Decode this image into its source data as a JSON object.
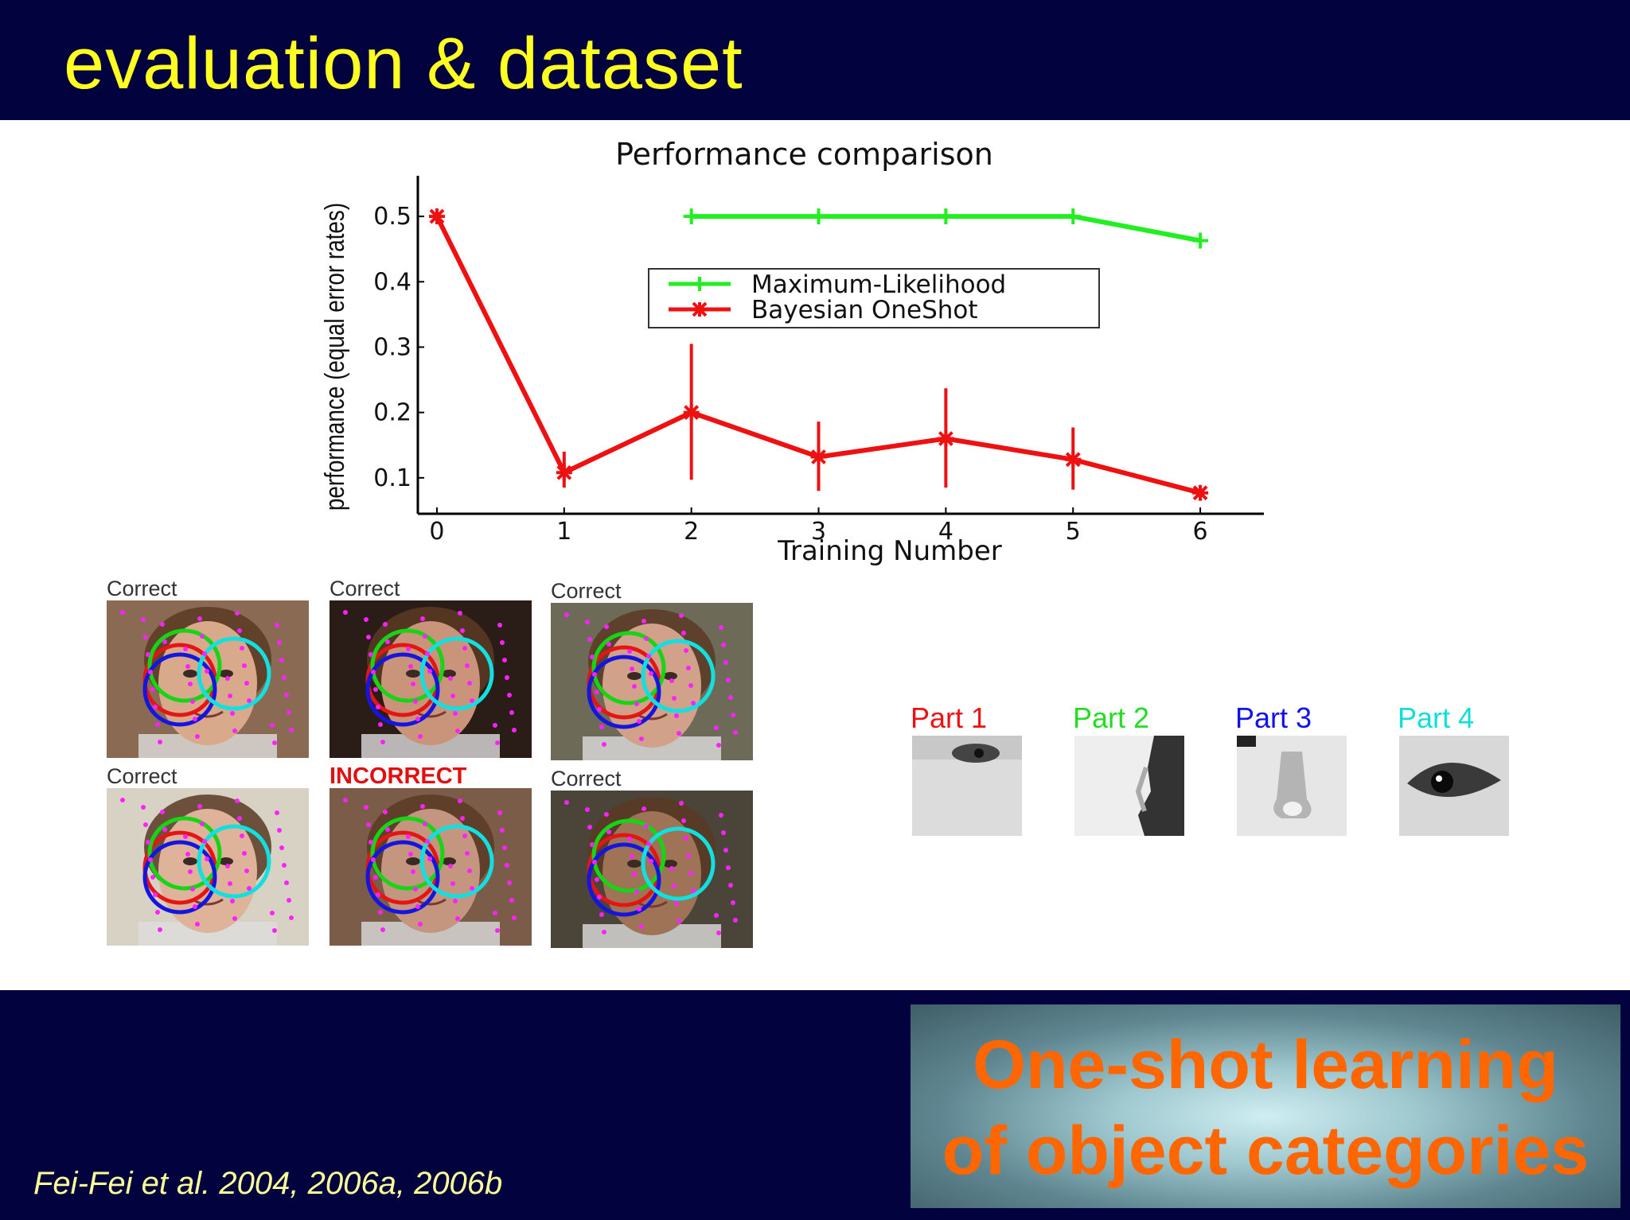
{
  "slide": {
    "title": "evaluation & dataset",
    "citation": "Fei-Fei et al. 2004, 2006a, 2006b",
    "logo": {
      "line1": "One-shot learning",
      "line2": "of object categories"
    }
  },
  "chart_data": {
    "type": "line",
    "title": "Performance comparison",
    "xlabel": "Training Number",
    "ylabel": "performance (equal error rates)",
    "xlim": [
      -0.15,
      6.5
    ],
    "ylim": [
      0.045,
      0.55
    ],
    "xticks": [
      "0",
      "1",
      "2",
      "3",
      "4",
      "5",
      "6"
    ],
    "yticks": [
      "0.5",
      "0.4",
      "0.3",
      "0.2",
      "0.1"
    ],
    "legend_position": "upper-center",
    "grid": false,
    "series": [
      {
        "name": "Maximum-Likelihood",
        "color": "#22ee22",
        "marker": "plus",
        "x": [
          2,
          3,
          4,
          5,
          6
        ],
        "y": [
          0.5,
          0.5,
          0.5,
          0.5,
          0.463
        ]
      },
      {
        "name": "Bayesian OneShot",
        "color": "#ee1111",
        "marker": "star",
        "x": [
          0,
          1,
          2,
          3,
          4,
          5,
          6
        ],
        "y": [
          0.5,
          0.108,
          0.2,
          0.132,
          0.16,
          0.128,
          0.077
        ],
        "err_low": [
          0.5,
          0.085,
          0.097,
          0.08,
          0.085,
          0.082,
          0.07
        ],
        "err_high": [
          0.5,
          0.14,
          0.305,
          0.186,
          0.237,
          0.177,
          0.083
        ]
      }
    ]
  },
  "faces": [
    {
      "label": "Correct",
      "bg": "#8a6a52",
      "skin": "#d9a98c",
      "incorrect": false
    },
    {
      "label": "Correct",
      "bg": "#2a1c16",
      "skin": "#c99479",
      "incorrect": false
    },
    {
      "label": "Correct",
      "bg": "#6d6a58",
      "skin": "#d2a189",
      "incorrect": false
    },
    {
      "label": "Correct",
      "bg": "#d8d2c4",
      "skin": "#deb39a",
      "incorrect": false
    },
    {
      "label": "INCORRECT",
      "bg": "#7b5c48",
      "skin": "#c5967f",
      "incorrect": true
    },
    {
      "label": "Correct",
      "bg": "#4a4538",
      "skin": "#9f7356",
      "incorrect": false
    }
  ],
  "parts": [
    {
      "label": "Part 1",
      "color": "#ee1111",
      "icon": "eye-patch-icon"
    },
    {
      "label": "Part 2",
      "color": "#22dd22",
      "icon": "cheek-patch-icon"
    },
    {
      "label": "Part 3",
      "color": "#1111ee",
      "icon": "nose-patch-icon"
    },
    {
      "label": "Part 4",
      "color": "#11dddd",
      "icon": "eye-patch-icon"
    }
  ]
}
